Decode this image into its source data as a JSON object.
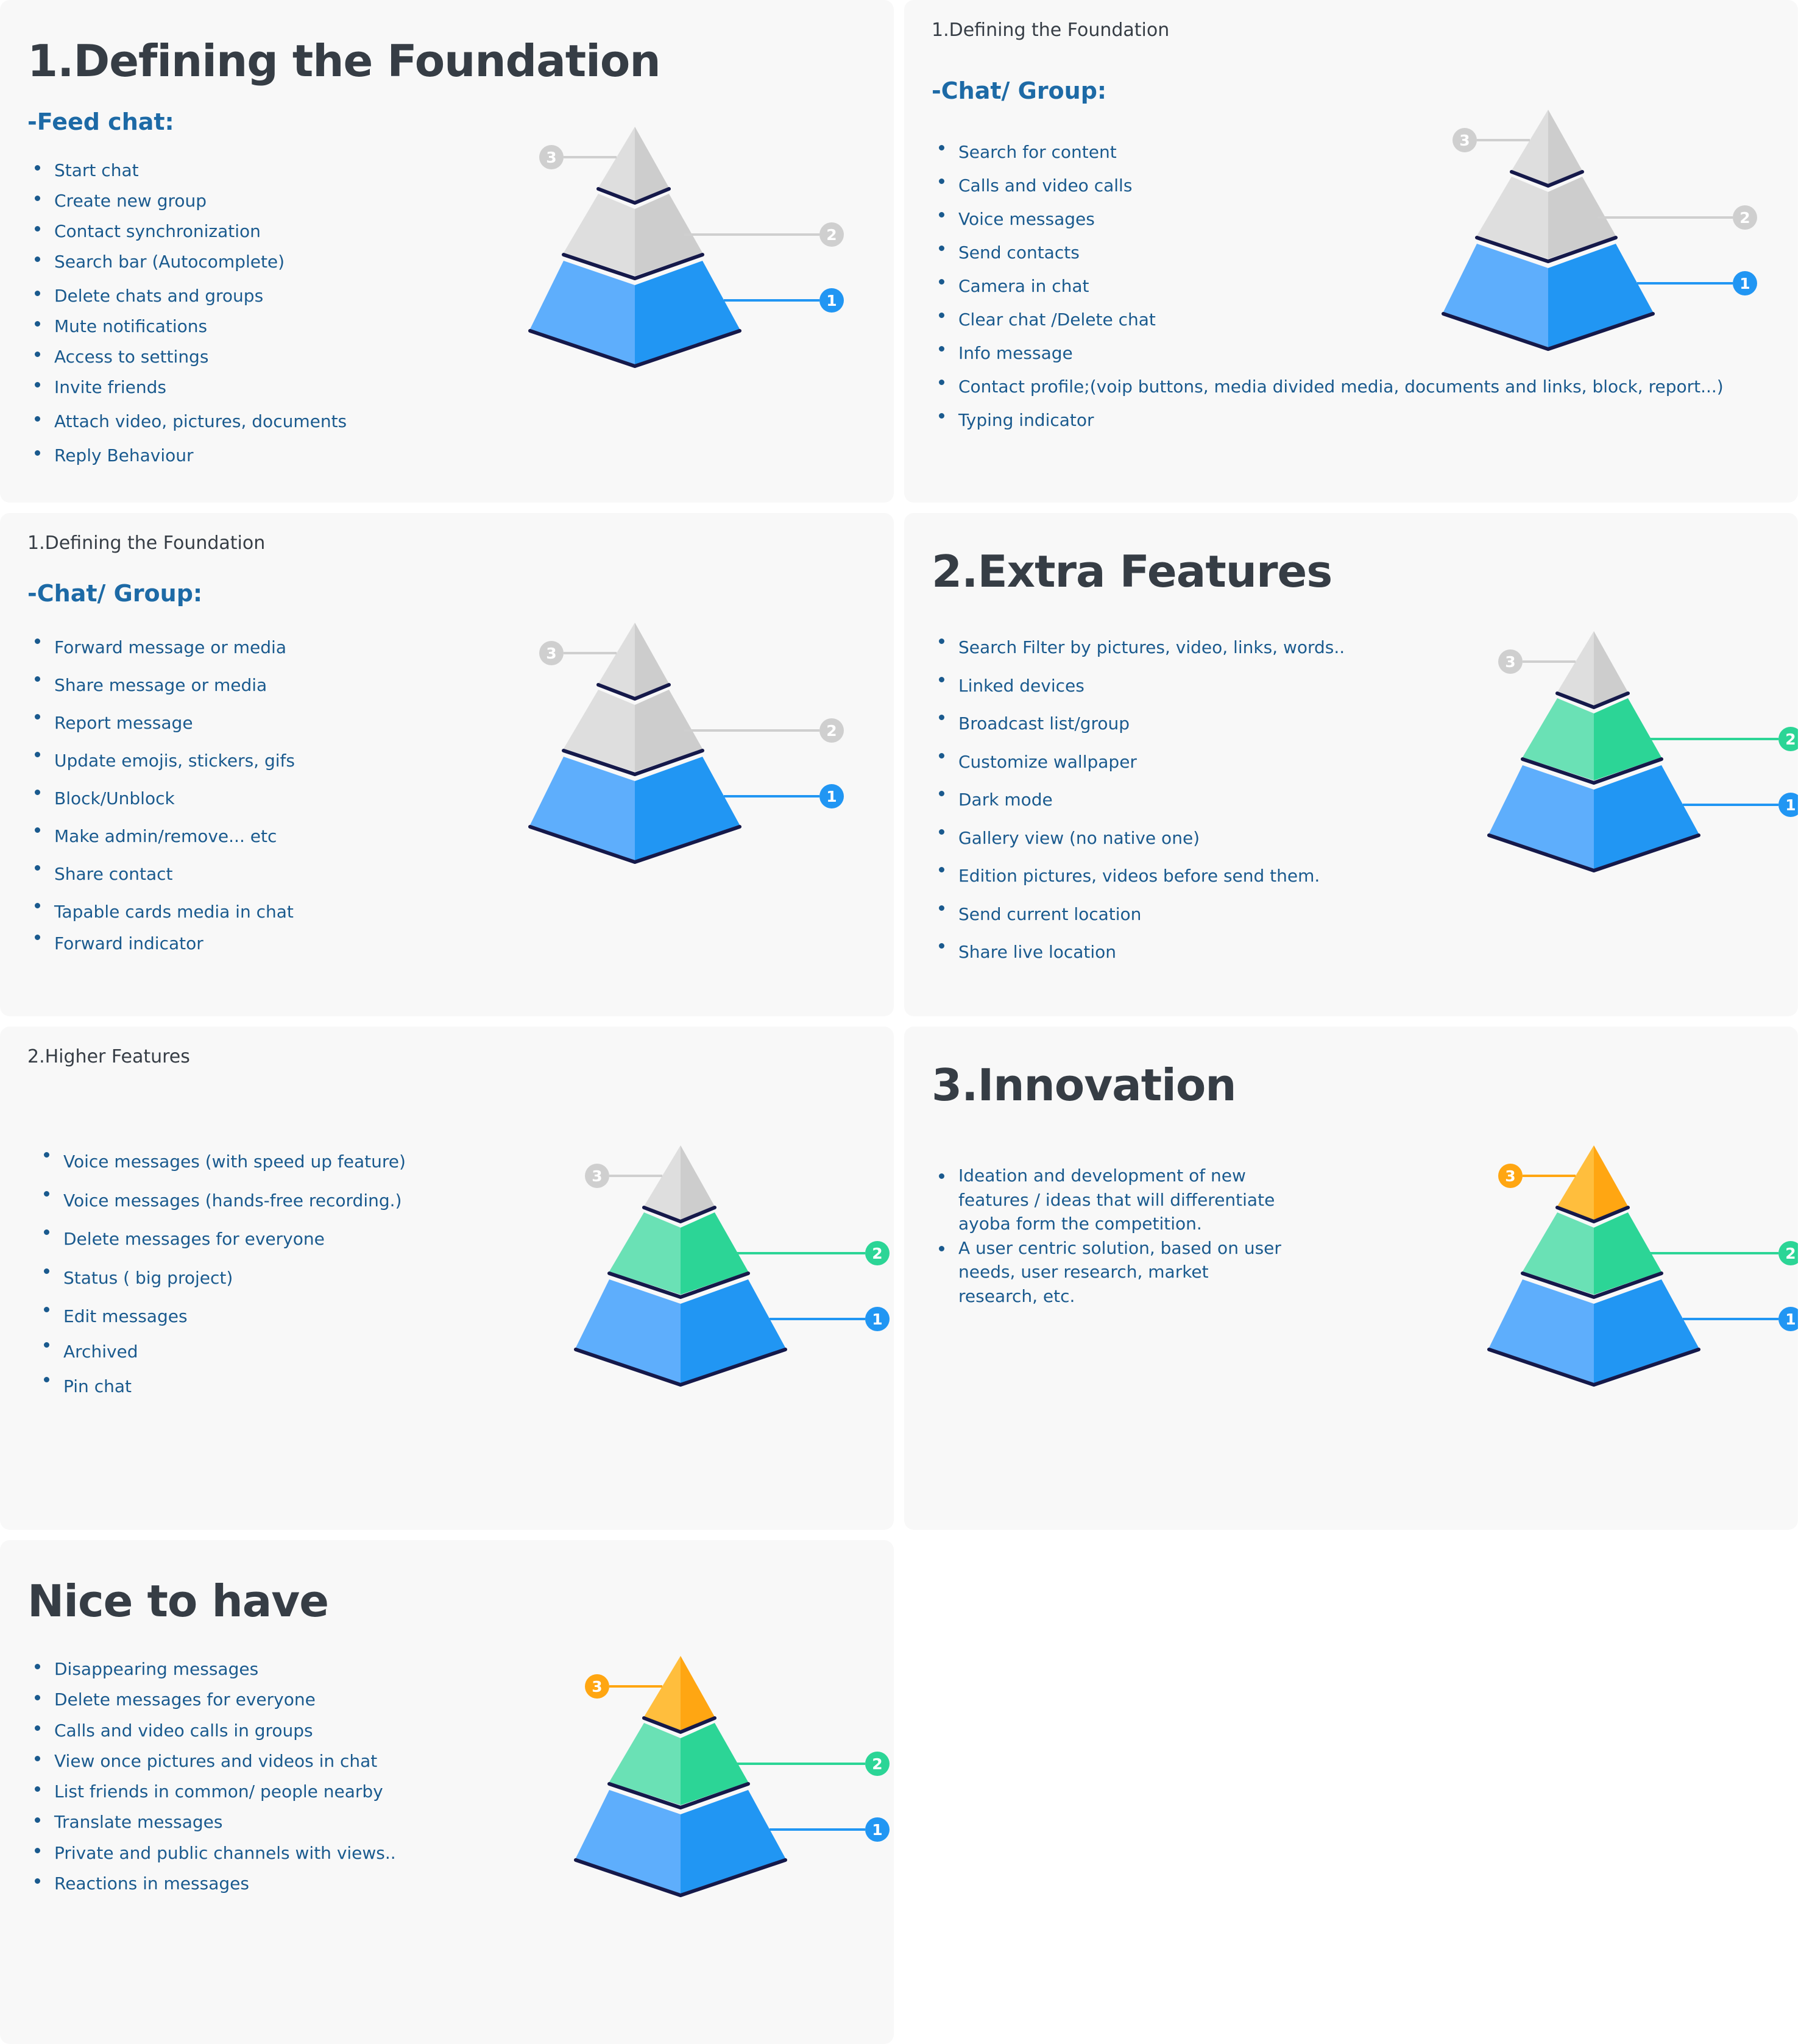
{
  "colors": {
    "gray_light": "#dedede",
    "gray_dark": "#cdcdcd",
    "gray_badge": "#cfcfcf",
    "blue_light": "#5eaefc",
    "blue_dark": "#2196f3",
    "blue_badge": "#2196f3",
    "green_light": "#6ae1b5",
    "green_dark": "#2cd596",
    "green_badge": "#2cd596",
    "orange_light": "#ffbe3d",
    "orange_dark": "#ffa612",
    "orange_badge": "#ffa612",
    "edge": "#15194a"
  },
  "cards": [
    {
      "title_big": "1.Defining the Foundation",
      "subtitle": "-Feed chat:",
      "items": [
        "Start chat",
        "Create new group",
        "Contact synchronization",
        "Search bar (Autocomplete)",
        "Delete chats and groups",
        "Mute notifications",
        "Access to settings",
        "Invite friends",
        "Attach video, pictures, documents",
        "Reply Behaviour"
      ],
      "pyramid": {
        "levels": [
          "1",
          "2",
          "3"
        ],
        "scheme": [
          "blue",
          "gray",
          "gray"
        ]
      }
    },
    {
      "title_small": "1.Defining the Foundation",
      "subtitle": "-Chat/ Group:",
      "items": [
        "Search for content",
        "Calls and video calls",
        "Voice messages",
        "Send contacts",
        "Camera in chat",
        "Clear chat /Delete chat",
        "Info message",
        "Contact profile;(voip buttons, media divided media, documents and links, block, report...)",
        "Typing indicator"
      ],
      "pyramid": {
        "levels": [
          "1",
          "2",
          "3"
        ],
        "scheme": [
          "blue",
          "gray",
          "gray"
        ]
      }
    },
    {
      "title_small": "1.Defining the Foundation",
      "subtitle": "-Chat/ Group:",
      "items": [
        "Forward message or media",
        "Share message or media",
        "Report message",
        "Update emojis, stickers, gifs",
        "Block/Unblock",
        "Make admin/remove... etc",
        "Share contact",
        "Tapable cards media in chat",
        "Forward indicator"
      ],
      "pyramid": {
        "levels": [
          "1",
          "2",
          "3"
        ],
        "scheme": [
          "blue",
          "gray",
          "gray"
        ]
      }
    },
    {
      "title_big": "2.Extra Features",
      "items": [
        "Search Filter by pictures, video, links, words..",
        "Linked devices",
        "Broadcast list/group",
        "Customize wallpaper",
        "Dark mode",
        "Gallery view (no native one)",
        "Edition pictures, videos before send them.",
        "Send current location",
        "Share live location"
      ],
      "pyramid": {
        "levels": [
          "1",
          "2",
          "3"
        ],
        "scheme": [
          "blue",
          "green",
          "gray"
        ]
      }
    },
    {
      "title_small": "2.Higher Features",
      "items": [
        "Voice messages (with speed up feature)",
        "Voice messages (hands-free recording.)",
        "Delete messages for everyone",
        "Status ( big project)",
        "Edit messages",
        "Archived",
        "Pin chat"
      ],
      "pyramid": {
        "levels": [
          "1",
          "2",
          "3"
        ],
        "scheme": [
          "blue",
          "green",
          "gray"
        ]
      }
    },
    {
      "title_big": "3.Innovation",
      "items": [
        "Ideation and development of new features / ideas that will differentiate ayoba form the competition.",
        "A user centric solution, based on user needs,  user research, market research, etc."
      ],
      "pyramid": {
        "levels": [
          "1",
          "2",
          "3"
        ],
        "scheme": [
          "blue",
          "green",
          "orange"
        ]
      }
    },
    {
      "title_big": "Nice to have",
      "items": [
        "Disappearing messages",
        "Delete messages for everyone",
        "Calls and video calls in groups",
        "View once  pictures and videos in chat",
        "List friends in common/ people nearby",
        "Translate messages",
        "Private and public channels with views..",
        "Reactions in messages"
      ],
      "pyramid": {
        "levels": [
          "1",
          "2",
          "3"
        ],
        "scheme": [
          "blue",
          "green",
          "orange"
        ]
      }
    }
  ]
}
